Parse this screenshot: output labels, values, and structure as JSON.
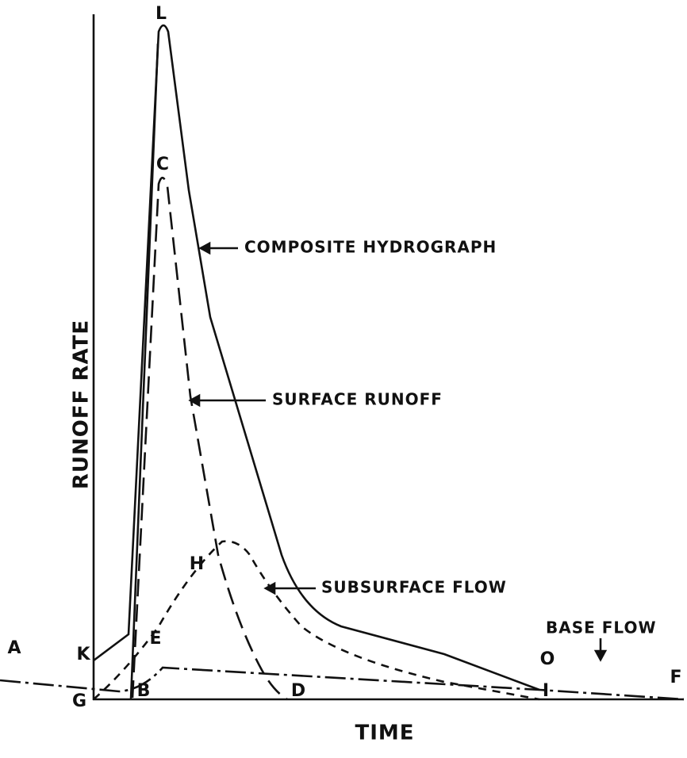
{
  "axes": {
    "y_label": "RUNOFF RATE",
    "x_label": "TIME"
  },
  "annotations": {
    "composite": "COMPOSITE HYDROGRAPH",
    "surface": "SURFACE RUNOFF",
    "subsurface": "SUBSURFACE FLOW",
    "base": "BASE FLOW"
  },
  "points": {
    "L": "L",
    "C": "C",
    "H": "H",
    "E": "E",
    "K": "K",
    "A": "A",
    "B": "B",
    "G": "G",
    "D": "D",
    "I": "I",
    "O": "O",
    "F": "F"
  }
}
